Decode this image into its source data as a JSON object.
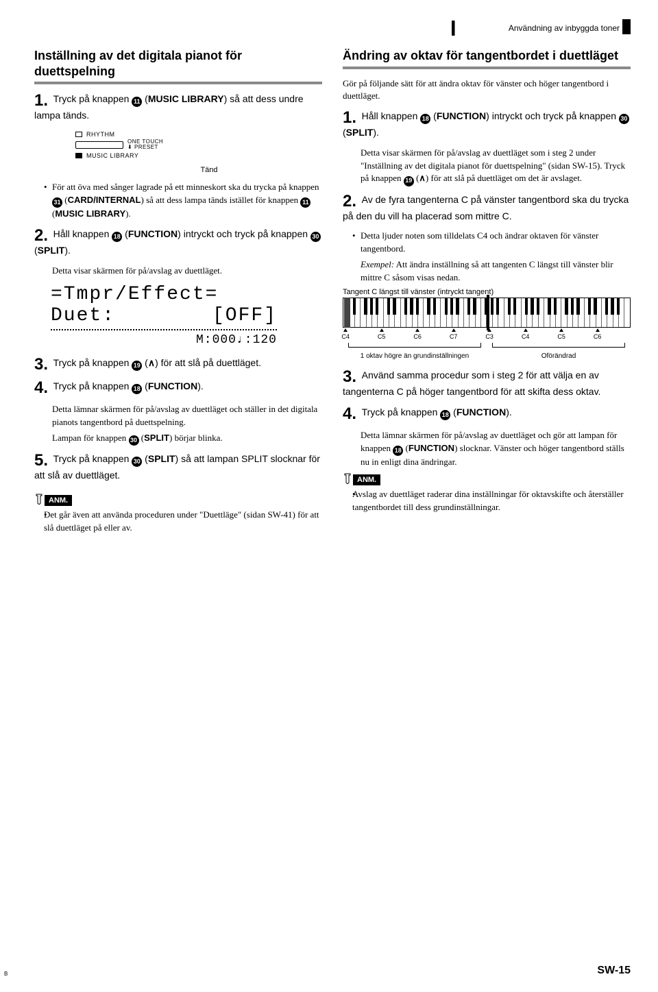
{
  "header": {
    "title": "Användning av inbyggda toner"
  },
  "left": {
    "section1_title": "Inställning av det digitala pianot för duettspelning",
    "step1_pre": "Tryck på knappen ",
    "step1_btn": "11",
    "step1_post": " (MUSIC LIBRARY) så att dess undre lampa tänds.",
    "rhythm_label": "RHYTHM",
    "onetouch_l1": "ONE TOUCH",
    "onetouch_l2": "PRESET",
    "musiclib_label": "MUSIC LIBRARY",
    "tand": "Tänd",
    "bullet1_a": "För att öva med sånger lagrade på ett minneskort ska du trycka på knappen ",
    "bullet1_btnA": "31",
    "bullet1_b": " (CARD/INTERNAL) så att dess lampa tänds istället för knappen ",
    "bullet1_btnB": "11",
    "bullet1_c": " (MUSIC LIBRARY).",
    "step2_pre": "Håll knappen ",
    "step2_btnA": "18",
    "step2_mid": " (FUNCTION) intryckt och tryck på knappen ",
    "step2_btnB": "30",
    "step2_post": " (SPLIT).",
    "step2_sub": "Detta visar skärmen för på/avslag av duettläget.",
    "lcd_line1": "=Tmpr/Effect=",
    "lcd_line2_left": "Duet:",
    "lcd_line2_right": "[OFF]",
    "lcd_line3": "M:000♩:120",
    "step3_pre": "Tryck på knappen ",
    "step3_btn": "19",
    "step3_mid": " (",
    "step3_chev": "∧",
    "step3_post": ") för att slå på duettläget.",
    "step4_pre": "Tryck på knappen ",
    "step4_btn": "18",
    "step4_post": " (FUNCTION).",
    "step4_sub1": "Detta lämnar skärmen för på/avslag av duettläget och ställer in det digitala pianots tangentbord på duettspelning.",
    "step4_sub2_a": "Lampan för knappen ",
    "step4_sub2_btn": "30",
    "step4_sub2_b": " (SPLIT) börjar blinka.",
    "step5_pre": "Tryck på knappen ",
    "step5_btn": "30",
    "step5_post": " (SPLIT) så att lampan SPLIT slocknar för att slå av duettläget.",
    "anm": "ANM.",
    "anm_bullet": "Det går även att använda proceduren under \"Duettläge\" (sidan SW-41) för att slå duettläget på eller av."
  },
  "right": {
    "section_title": "Ändring av oktav för tangentbordet i duettläget",
    "intro": "Gör på följande sätt för att ändra oktav för vänster och höger tangentbord i duettläget.",
    "step1_pre": "Håll knappen ",
    "step1_btnA": "18",
    "step1_mid": " (FUNCTION) intryckt och tryck på knappen ",
    "step1_btnB": "30",
    "step1_post": " (SPLIT).",
    "step1_sub_a": "Detta visar skärmen för på/avslag av duettläget som i steg 2 under \"Inställning av det digitala pianot för duettspelning\" (sidan SW-15). Tryck på knappen ",
    "step1_sub_btn": "19",
    "step1_sub_b": " (",
    "step1_sub_chev": "∧",
    "step1_sub_c": ") för att slå på duettläget om det är avslaget.",
    "step2_text": "Av de fyra tangenterna C på vänster tangentbord ska du trycka på den du vill ha placerad som mittre C.",
    "step2_bullet": "Detta ljuder noten som tilldelats C4 och ändrar oktaven för vänster tangentbord.",
    "step2_example_label": "Exempel:",
    "step2_example": " Att ändra inställning så att tangenten C längst till vänster blir mittre C såsom visas nedan.",
    "kb_caption": "Tangent C längst till vänster (intryckt tangent)",
    "kb_ticks": [
      "C4",
      "C5",
      "C6",
      "C7",
      "C3",
      "C4",
      "C5",
      "C6"
    ],
    "kb_left_label": "1 oktav högre än grundinställningen",
    "kb_right_label": "Oförändrad",
    "step3_text": "Använd samma procedur som i steg 2 för att välja en av tangenterna C på höger tangentbord för att skifta dess oktav.",
    "step4_pre": "Tryck på knappen ",
    "step4_btn": "18",
    "step4_post": " (FUNCTION).",
    "step4_sub_a": "Detta lämnar skärmen för på/avslag av duettläget och gör att lampan för knappen ",
    "step4_sub_btn": "18",
    "step4_sub_b": " (FUNCTION) slocknar. Vänster och höger tangentbord ställs nu in enligt dina ändringar.",
    "anm": "ANM.",
    "anm_bullet": "Avslag av duettläget raderar dina inställningar för oktavskifte och återställer tangentbordet till dess grundinställningar."
  },
  "footer": {
    "page": "SW-15",
    "b": "B"
  }
}
